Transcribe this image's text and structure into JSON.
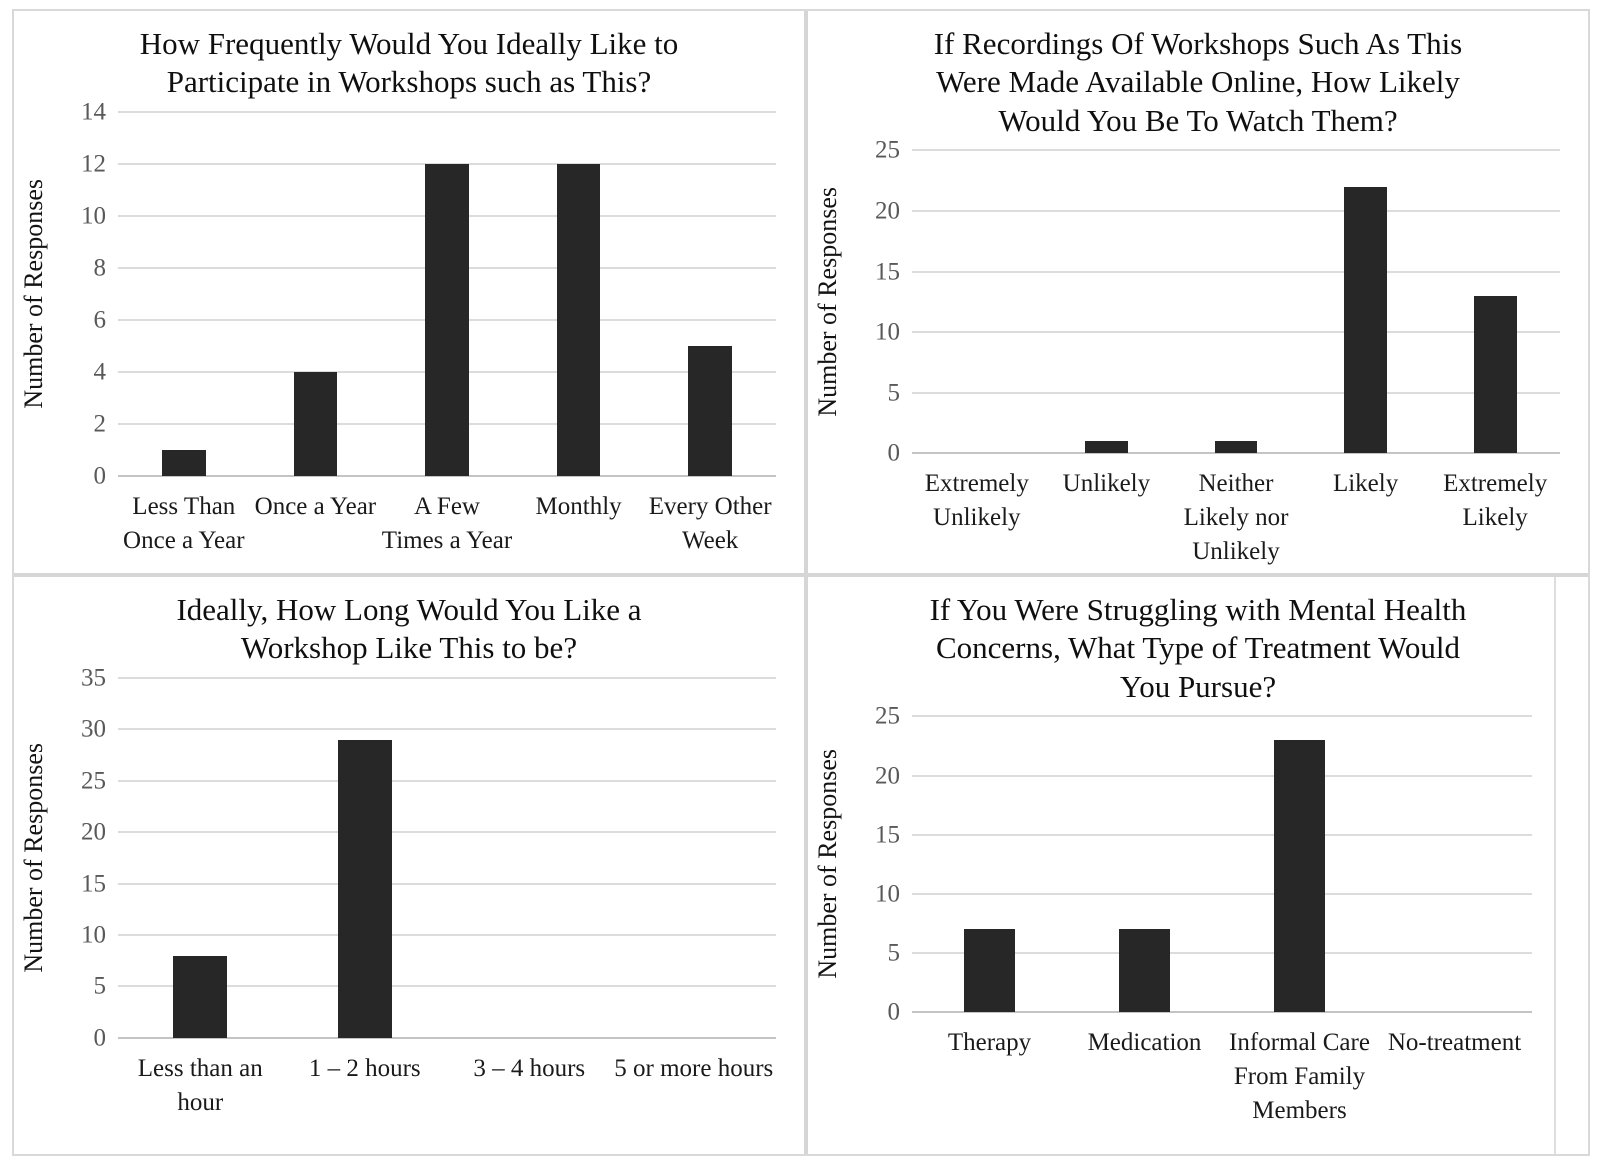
{
  "page": {
    "background": "#ffffff",
    "frame_border_color": "#d9d9d9",
    "separator_color": "#d6d6d6"
  },
  "colors": {
    "bar": "#272727",
    "gridline": "#dcdcdc",
    "axis_line": "#c4c4c4",
    "tick_text": "#595959",
    "category_text": "#1a1a1a",
    "title_text": "#0f0f0f"
  },
  "chart_data": [
    {
      "type": "bar",
      "title": "How Frequently Would You Ideally Like to Participate in Workshops such as This?",
      "title_lines": [
        "How Frequently Would You Ideally Like to",
        "Participate in Workshops such as This?"
      ],
      "xlabel": "",
      "ylabel": "Number of Responses",
      "categories": [
        "Less Than Once a Year",
        "Once a Year",
        "A Few Times a Year",
        "Monthly",
        "Every Other Week"
      ],
      "category_lines": [
        [
          "Less Than",
          "Once a Year"
        ],
        [
          "Once a Year"
        ],
        [
          "A Few",
          "Times a Year"
        ],
        [
          "Monthly"
        ],
        [
          "Every Other",
          "Week"
        ]
      ],
      "values": [
        1,
        4,
        12,
        12,
        5
      ],
      "ylim": [
        0,
        14
      ],
      "yticks": [
        0,
        2,
        4,
        6,
        8,
        10,
        12,
        14
      ],
      "grid": true,
      "legend": "none"
    },
    {
      "type": "bar",
      "title": "If Recordings Of Workshops Such As This Were Made Available Online, How Likely Would You Be To Watch Them?",
      "title_lines": [
        "If Recordings Of Workshops Such As This",
        "Were Made Available Online, How Likely",
        "Would You Be To Watch Them?"
      ],
      "xlabel": "",
      "ylabel": "Number of Responses",
      "categories": [
        "Extremely Unlikely",
        "Unlikely",
        "Neither Likely nor Unlikely",
        "Likely",
        "Extremely Likely"
      ],
      "category_lines": [
        [
          "Extremely",
          "Unlikely"
        ],
        [
          "Unlikely"
        ],
        [
          "Neither",
          "Likely nor",
          "Unlikely"
        ],
        [
          "Likely"
        ],
        [
          "Extremely",
          "Likely"
        ]
      ],
      "values": [
        0,
        1,
        1,
        22,
        13
      ],
      "ylim": [
        0,
        25
      ],
      "yticks": [
        0,
        5,
        10,
        15,
        20,
        25
      ],
      "grid": true,
      "legend": "none"
    },
    {
      "type": "bar",
      "title": "Ideally, How Long Would You Like a Workshop Like This to be?",
      "title_lines": [
        "Ideally, How Long Would You Like a",
        "Workshop Like This to be?"
      ],
      "xlabel": "",
      "ylabel": "Number of Responses",
      "categories": [
        "Less than an hour",
        "1 – 2 hours",
        "3 – 4 hours",
        "5 or more hours"
      ],
      "category_lines": [
        [
          "Less than an",
          "hour"
        ],
        [
          "1 – 2 hours"
        ],
        [
          "3 – 4 hours"
        ],
        [
          "5 or more hours"
        ]
      ],
      "values": [
        8,
        29,
        0,
        0
      ],
      "ylim": [
        0,
        35
      ],
      "yticks": [
        0,
        5,
        10,
        15,
        20,
        25,
        30,
        35
      ],
      "grid": true,
      "legend": "none"
    },
    {
      "type": "bar",
      "title": "If You Were Struggling with Mental Health Concerns, What Type of Treatment Would You Pursue?",
      "title_lines": [
        "If You Were Struggling with Mental Health",
        "Concerns, What Type of Treatment Would",
        "You Pursue?"
      ],
      "xlabel": "",
      "ylabel": "Number of Responses",
      "categories": [
        "Therapy",
        "Medication",
        "Informal Care From Family Members",
        "No-treatment"
      ],
      "category_lines": [
        [
          "Therapy"
        ],
        [
          "Medication"
        ],
        [
          "Informal Care",
          "From Family",
          "Members"
        ],
        [
          "No-treatment"
        ]
      ],
      "values": [
        7,
        7,
        23,
        0
      ],
      "ylim": [
        0,
        25
      ],
      "yticks": [
        0,
        5,
        10,
        15,
        20,
        25
      ],
      "grid": true,
      "legend": "none"
    }
  ]
}
